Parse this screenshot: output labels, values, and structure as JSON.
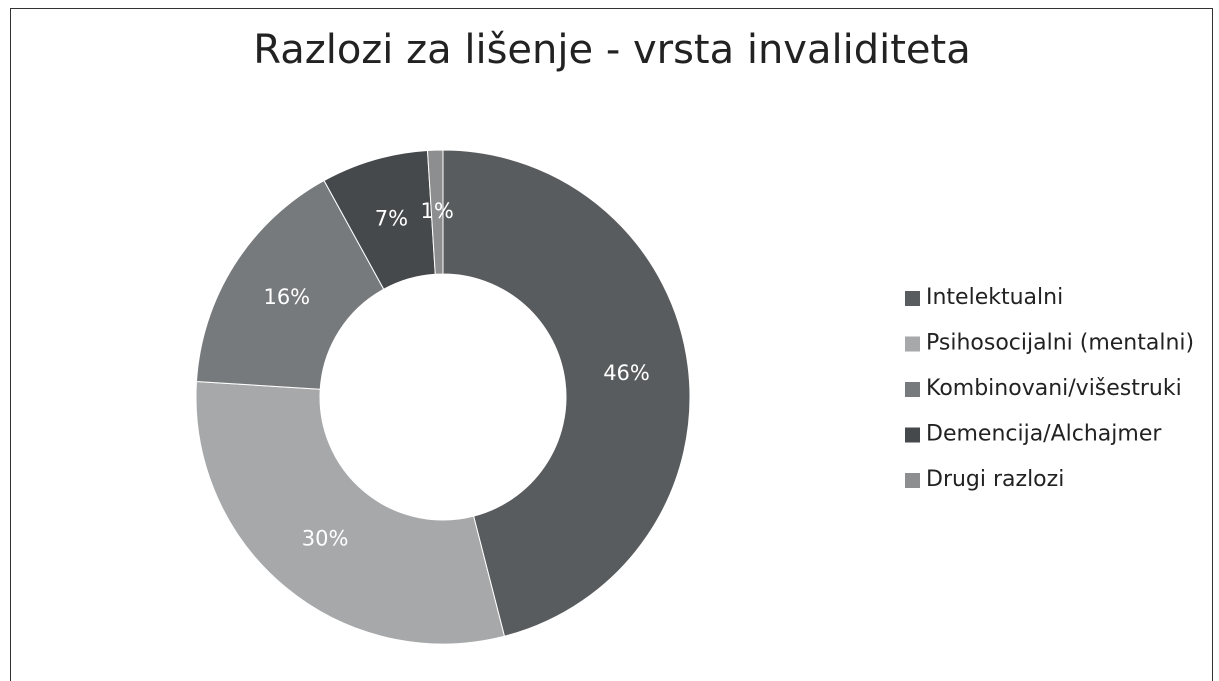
{
  "chart_data": {
    "type": "donut",
    "title": "Razlozi za lišenje - vrsta invaliditeta",
    "categories": [
      "Intelektualni",
      "Psihosocijalni (mentalni)",
      "Kombinovani/višestruki",
      "Demencija/Alchajmer",
      "Drugi razlozi"
    ],
    "values": [
      46,
      30,
      16,
      7,
      1
    ],
    "value_labels": [
      "46%",
      "30%",
      "16%",
      "7%",
      "1%"
    ],
    "colors": [
      "#595c5e",
      "#a6a8a9",
      "#777a7c",
      "#46494b",
      "#8c8e90"
    ],
    "legend": "right"
  }
}
